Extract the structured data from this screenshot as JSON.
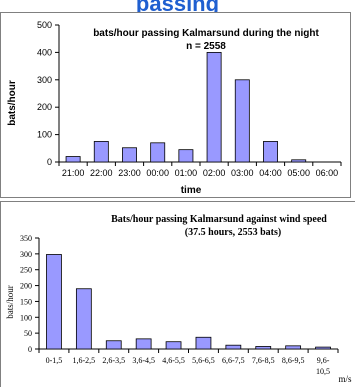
{
  "banner_text": "passing",
  "chart_data": [
    {
      "type": "bar",
      "title": "bats/hour passing Kalmarsund during the night",
      "subtitle": "n = 2558",
      "xlabel": "time",
      "ylabel": "bats/hour",
      "categories": [
        "21:00",
        "22:00",
        "23:00",
        "00:00",
        "01:00",
        "02:00",
        "03:00",
        "04:00",
        "05:00",
        "06:00"
      ],
      "values": [
        20,
        75,
        52,
        70,
        45,
        400,
        300,
        75,
        8,
        0
      ],
      "ylim": [
        0,
        500
      ],
      "yticks": [
        0,
        100,
        200,
        300,
        400,
        500
      ],
      "bar_color": "#9999ff",
      "grid": false
    },
    {
      "type": "bar",
      "title": "Bats/hour passing Kalmarsund against wind speed",
      "subtitle": "(37.5 hours, 2553 bats)",
      "xlabel": "m/s",
      "ylabel": "bats/hour",
      "categories": [
        "0-1,5",
        "1,6-2,5",
        "2,6-3,5",
        "3,6-4,5",
        "4,6-5,5",
        "5,6-6,5",
        "6,6-7,5",
        "7,6-8,5",
        "8,6-9,5",
        "9,6-10,5"
      ],
      "values": [
        298,
        190,
        26,
        32,
        23,
        37,
        12,
        8,
        10,
        6
      ],
      "ylim": [
        0,
        350
      ],
      "yticks": [
        0,
        50,
        100,
        150,
        200,
        250,
        300,
        350
      ],
      "bar_color": "#9999ff",
      "grid": false
    }
  ]
}
